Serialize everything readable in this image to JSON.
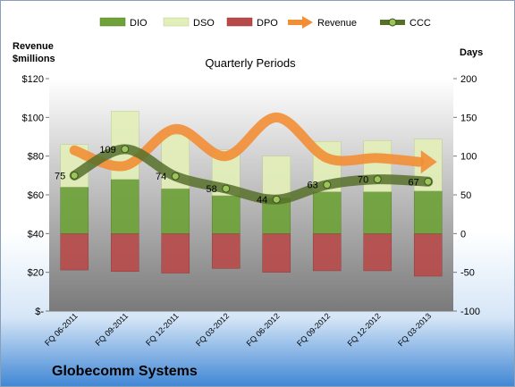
{
  "chart_data": {
    "type": "bar",
    "company": "Globecomm Systems",
    "subtitle": "Quarterly Periods",
    "left_axis_title_line1": "Revenue",
    "left_axis_title_line2": "$millions",
    "right_axis_title": "Days",
    "categories": [
      "FQ 06-2011",
      "FQ 09-2011",
      "FQ 12-2011",
      "FQ 03-2012",
      "FQ 06-2012",
      "FQ 09-2012",
      "FQ 12-2012",
      "FQ 03-2013"
    ],
    "left_axis": {
      "ylim": [
        0,
        120
      ],
      "ticks": [
        0,
        20,
        40,
        60,
        80,
        100,
        120
      ],
      "tick_labels": [
        "$-",
        "$20",
        "$40",
        "$60",
        "$80",
        "$100",
        "$120"
      ]
    },
    "right_axis": {
      "ylim": [
        -100,
        200
      ],
      "ticks": [
        -100,
        -50,
        0,
        50,
        100,
        150,
        200
      ],
      "tick_labels": [
        "-100",
        "-50",
        "0",
        "50",
        "100",
        "150",
        "200"
      ]
    },
    "legend": [
      "DIO",
      "DSO",
      "DPO",
      "Revenue",
      "CCC"
    ],
    "legend_position": "top",
    "grid": false,
    "series": [
      {
        "name": "DIO",
        "axis": "right",
        "kind": "stacked-bar",
        "color": "#6fa23a",
        "values": [
          60,
          70,
          58,
          49,
          46,
          54,
          54,
          55
        ]
      },
      {
        "name": "DSO",
        "axis": "right",
        "kind": "stacked-bar",
        "color": "#e3efb9",
        "values": [
          55,
          88,
          70,
          59,
          54,
          65,
          66,
          67
        ]
      },
      {
        "name": "DPO",
        "axis": "right",
        "kind": "negative-bar",
        "color": "#b84a4a",
        "values": [
          -47,
          -49,
          -51,
          -45,
          -50,
          -48,
          -48,
          -55
        ]
      },
      {
        "name": "Revenue",
        "axis": "left",
        "kind": "line",
        "color": "#f28e35",
        "values": [
          83,
          75,
          94,
          80,
          100,
          79,
          79,
          77
        ]
      },
      {
        "name": "CCC",
        "axis": "right",
        "kind": "line-markers",
        "color": "#56702a",
        "values": [
          75,
          109,
          74,
          58,
          44,
          63,
          70,
          67
        ],
        "data_labels": [
          "75",
          "109",
          "74",
          "58",
          "44",
          "63",
          "70",
          "67"
        ]
      }
    ]
  }
}
